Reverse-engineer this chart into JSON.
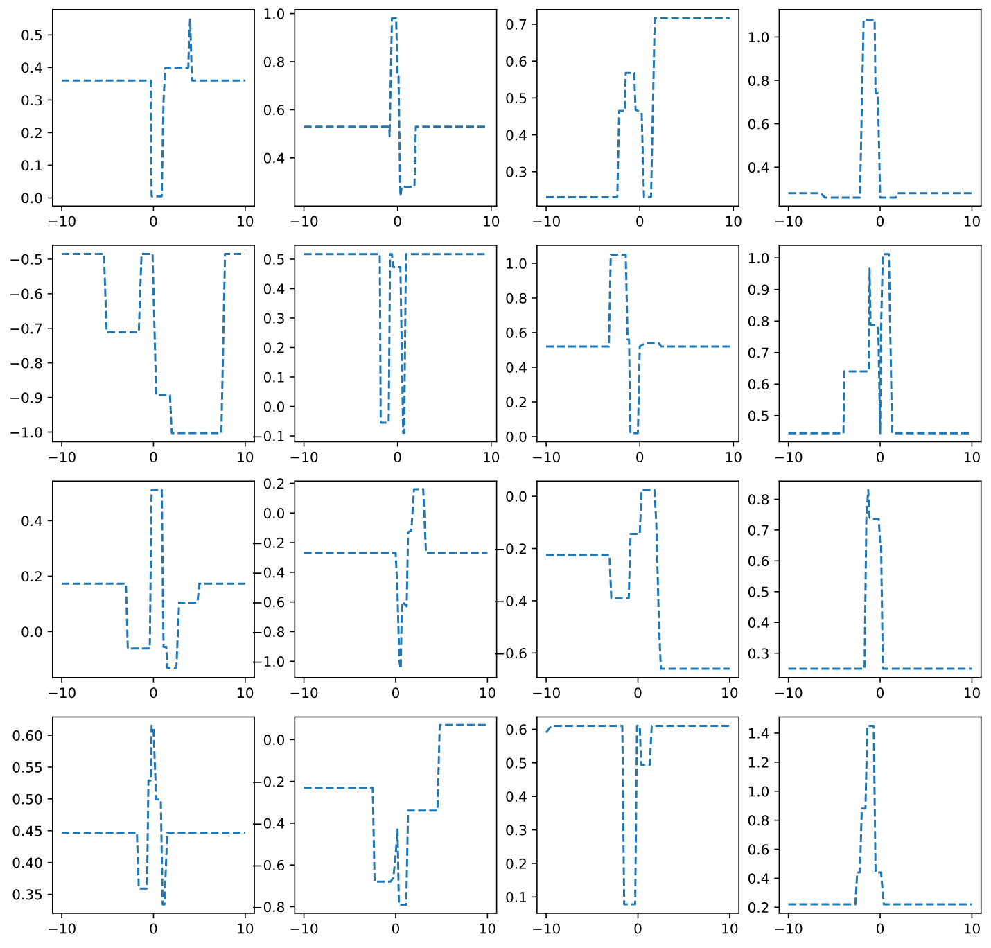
{
  "chart_data": [
    {
      "type": "line",
      "line_style": "dashed",
      "xlim": [
        -11,
        11
      ],
      "xticks": [
        -10,
        0,
        10
      ],
      "ylim": [
        -0.025,
        0.578
      ],
      "yticks": [
        {
          "value": 0,
          "label": "0.0"
        },
        0.1,
        0.2,
        0.3,
        0.4,
        0.5
      ],
      "series": [
        {
          "color": "#1f77b4",
          "x": [
            -10,
            -0.3,
            -0.2,
            0.9,
            1.1,
            1.3,
            3.8,
            3.9,
            4.0,
            4.1,
            4.2,
            10
          ],
          "values": [
            0.36,
            0.36,
            0.005,
            0.005,
            0.3,
            0.4,
            0.4,
            0.5,
            0.55,
            0.45,
            0.36,
            0.36
          ]
        }
      ]
    },
    {
      "type": "line",
      "line_style": "dashed",
      "xlim": [
        -10.98,
        10.58
      ],
      "xticks": [
        -10,
        0,
        10
      ],
      "ylim": [
        0.2,
        1.017
      ],
      "yticks": [
        0.4,
        0.6,
        0.8,
        {
          "value": 1,
          "label": "1.0"
        }
      ],
      "series": [
        {
          "color": "#1f77b4",
          "x": [
            -10,
            -0.9,
            -0.85,
            -0.6,
            -0.15,
            0.0,
            0.1,
            0.3,
            0.45,
            0.6,
            1.8,
            1.95,
            9.6
          ],
          "values": [
            0.53,
            0.53,
            0.49,
            0.98,
            0.98,
            0.74,
            0.74,
            0.24,
            0.28,
            0.28,
            0.28,
            0.53,
            0.53
          ]
        }
      ]
    },
    {
      "type": "line",
      "line_style": "dashed",
      "xlim": [
        -10.98,
        10.58
      ],
      "xticks": [
        -10,
        0,
        10
      ],
      "ylim": [
        0.207,
        0.74
      ],
      "yticks": [
        0.3,
        0.4,
        0.5,
        0.6,
        0.7
      ],
      "series": [
        {
          "color": "#1f77b4",
          "x": [
            -10,
            -2.4,
            -2.2,
            -1.6,
            -1.5,
            -0.6,
            -0.45,
            0.2,
            0.45,
            1.2,
            1.6,
            9.6
          ],
          "values": [
            0.231,
            0.231,
            0.465,
            0.465,
            0.568,
            0.568,
            0.468,
            0.46,
            0.231,
            0.231,
            0.716,
            0.716
          ]
        }
      ]
    },
    {
      "type": "line",
      "line_style": "dashed",
      "xlim": [
        -11,
        11
      ],
      "xticks": [
        -10,
        0,
        10
      ],
      "ylim": [
        0.221,
        1.127
      ],
      "yticks": [
        0.4,
        0.6,
        0.8,
        {
          "value": 1,
          "label": "1.0"
        }
      ],
      "series": [
        {
          "color": "#1f77b4",
          "x": [
            -10,
            -6.5,
            -6.0,
            -2.2,
            -1.8,
            -0.6,
            -0.5,
            -0.25,
            0.0,
            1.7,
            1.9,
            10
          ],
          "values": [
            0.28,
            0.28,
            0.26,
            0.26,
            1.08,
            1.08,
            0.74,
            0.74,
            0.26,
            0.26,
            0.28,
            0.28
          ]
        }
      ]
    },
    {
      "type": "line",
      "line_style": "dashed",
      "xlim": [
        -11,
        11
      ],
      "xticks": [
        -10,
        0,
        10
      ],
      "ylim": [
        -1.028,
        -0.46
      ],
      "yticks": [
        {
          "value": -1,
          "label": "−1.0"
        },
        -0.9,
        -0.8,
        -0.7,
        -0.6,
        -0.5
      ],
      "series": [
        {
          "color": "#1f77b4",
          "x": [
            -10,
            -5.4,
            -5.1,
            -1.6,
            -1.3,
            -0.1,
            0.3,
            1.8,
            2.0,
            7.4,
            7.8,
            10
          ],
          "values": [
            -0.485,
            -0.485,
            -0.711,
            -0.711,
            -0.485,
            -0.485,
            -0.893,
            -0.893,
            -1.003,
            -1.003,
            -0.485,
            -0.485
          ]
        }
      ]
    },
    {
      "type": "line",
      "line_style": "dashed",
      "xlim": [
        -10.98,
        10.58
      ],
      "xticks": [
        -10,
        0,
        10
      ],
      "ylim": [
        -0.12,
        0.547
      ],
      "yticks": [
        -0.1,
        {
          "value": 0,
          "label": "0.0"
        },
        0.1,
        0.2,
        0.3,
        0.4,
        0.5
      ],
      "series": [
        {
          "color": "#1f77b4",
          "x": [
            -10,
            -1.9,
            -1.8,
            -0.95,
            -0.8,
            -0.6,
            -0.45,
            0.3,
            0.6,
            0.7,
            0.9,
            9.6
          ],
          "values": [
            0.517,
            0.517,
            -0.055,
            -0.055,
            0.517,
            0.517,
            0.473,
            0.473,
            -0.09,
            -0.09,
            0.517,
            0.517
          ]
        }
      ]
    },
    {
      "type": "line",
      "line_style": "dashed",
      "xlim": [
        -10.98,
        10.58
      ],
      "xticks": [
        -10,
        0,
        10
      ],
      "ylim": [
        -0.03,
        1.104
      ],
      "yticks": [
        {
          "value": 0,
          "label": "0.0"
        },
        0.2,
        0.4,
        0.6,
        0.8,
        {
          "value": 1,
          "label": "1.0"
        }
      ],
      "series": [
        {
          "color": "#1f77b4",
          "x": [
            -10,
            -3.3,
            -3.1,
            -1.5,
            -1.3,
            -1.15,
            -1.0,
            -0.2,
            0.0,
            0.6,
            2.0,
            2.3,
            9.6
          ],
          "values": [
            0.52,
            0.52,
            1.05,
            1.05,
            0.56,
            0.56,
            0.02,
            0.02,
            0.52,
            0.54,
            0.54,
            0.52,
            0.52
          ]
        }
      ]
    },
    {
      "type": "line",
      "line_style": "dashed",
      "xlim": [
        -11,
        11
      ],
      "xticks": [
        -10,
        0,
        10
      ],
      "ylim": [
        0.417,
        1.04
      ],
      "yticks": [
        0.5,
        0.6,
        0.7,
        0.8,
        0.9,
        {
          "value": 1,
          "label": "1.0"
        }
      ],
      "series": [
        {
          "color": "#1f77b4",
          "x": [
            -10,
            -4.0,
            -3.9,
            -1.25,
            -1.15,
            -1.05,
            -0.4,
            -0.2,
            0.0,
            0.1,
            0.3,
            0.95,
            1.3,
            10
          ],
          "values": [
            0.444,
            0.444,
            0.64,
            0.64,
            0.966,
            0.787,
            0.787,
            0.773,
            0.444,
            0.78,
            1.012,
            1.012,
            0.444,
            0.444
          ]
        }
      ]
    },
    {
      "type": "line",
      "line_style": "dashed",
      "xlim": [
        -11,
        11
      ],
      "xticks": [
        -10,
        0,
        10
      ],
      "ylim": [
        -0.166,
        0.543
      ],
      "yticks": [
        {
          "value": 0,
          "label": "0.0"
        },
        0.2,
        0.4
      ],
      "series": [
        {
          "color": "#1f77b4",
          "x": [
            -10,
            -3.0,
            -2.8,
            -0.4,
            -0.2,
            0.9,
            1.1,
            1.4,
            1.5,
            2.5,
            2.8,
            4.8,
            5.0,
            10
          ],
          "values": [
            0.173,
            0.173,
            -0.061,
            -0.061,
            0.511,
            0.511,
            -0.055,
            -0.055,
            -0.13,
            -0.13,
            0.105,
            0.105,
            0.173,
            0.173
          ]
        }
      ]
    },
    {
      "type": "line",
      "line_style": "dashed",
      "xlim": [
        -11,
        11
      ],
      "xticks": [
        -10,
        0,
        10
      ],
      "ylim": [
        -1.11,
        0.215
      ],
      "yticks": [
        {
          "value": -1,
          "label": "−1.0"
        },
        -0.8,
        -0.6,
        -0.4,
        -0.2,
        {
          "value": 0,
          "label": "0.0"
        },
        0.2
      ],
      "series": [
        {
          "color": "#1f77b4",
          "x": [
            -10,
            0.0,
            0.2,
            0.4,
            0.55,
            0.65,
            0.75,
            1.2,
            1.35,
            1.7,
            2.0,
            3.0,
            3.3,
            10
          ],
          "values": [
            -0.27,
            -0.27,
            -0.55,
            -1.0,
            -1.05,
            -0.7,
            -0.6,
            -0.63,
            -0.13,
            -0.12,
            0.16,
            0.16,
            -0.27,
            -0.27
          ]
        }
      ]
    },
    {
      "type": "line",
      "line_style": "dashed",
      "xlim": [
        -11,
        11
      ],
      "xticks": [
        -10,
        0,
        10
      ],
      "ylim": [
        -0.694,
        0.058
      ],
      "yticks": [
        -0.6,
        -0.4,
        -0.2,
        {
          "value": 0,
          "label": "0.0"
        }
      ],
      "series": [
        {
          "color": "#1f77b4",
          "x": [
            -10,
            -3.1,
            -2.9,
            -1.0,
            -0.8,
            0.2,
            0.4,
            1.8,
            2.0,
            2.3,
            2.5,
            10
          ],
          "values": [
            -0.225,
            -0.225,
            -0.39,
            -0.39,
            -0.144,
            -0.144,
            0.024,
            0.024,
            -0.1,
            -0.5,
            -0.66,
            -0.66
          ]
        }
      ]
    },
    {
      "type": "line",
      "line_style": "dashed",
      "xlim": [
        -11,
        11
      ],
      "xticks": [
        -10,
        0,
        10
      ],
      "ylim": [
        0.221,
        0.859
      ],
      "yticks": [
        0.3,
        0.4,
        0.5,
        0.6,
        0.7,
        0.8
      ],
      "series": [
        {
          "color": "#1f77b4",
          "x": [
            -10,
            -1.7,
            -1.5,
            -1.3,
            -1.15,
            -1.0,
            -0.15,
            0.0,
            0.1,
            0.3,
            10
          ],
          "values": [
            0.25,
            0.25,
            0.742,
            0.83,
            0.74,
            0.736,
            0.736,
            0.656,
            0.656,
            0.25,
            0.25
          ]
        }
      ]
    },
    {
      "type": "line",
      "line_style": "dashed",
      "xlim": [
        -11,
        11
      ],
      "xticks": [
        -10,
        0,
        10
      ],
      "ylim": [
        0.32,
        0.629
      ],
      "yticks": [
        {
          "value": 0.35,
          "label": "0.35"
        },
        {
          "value": 0.4,
          "label": "0.40"
        },
        {
          "value": 0.45,
          "label": "0.45"
        },
        {
          "value": 0.5,
          "label": "0.50"
        },
        {
          "value": 0.55,
          "label": "0.55"
        },
        {
          "value": 0.6,
          "label": "0.60"
        }
      ],
      "series": [
        {
          "color": "#1f77b4",
          "x": [
            -10,
            -1.8,
            -1.6,
            -0.7,
            -0.55,
            -0.3,
            -0.2,
            0.0,
            0.3,
            0.8,
            1.0,
            1.2,
            1.5,
            10
          ],
          "values": [
            0.447,
            0.447,
            0.359,
            0.359,
            0.529,
            0.529,
            0.615,
            0.612,
            0.499,
            0.499,
            0.334,
            0.334,
            0.447,
            0.447
          ]
        }
      ]
    },
    {
      "type": "line",
      "line_style": "dashed",
      "xlim": [
        -11,
        11
      ],
      "xticks": [
        -10,
        0,
        10
      ],
      "ylim": [
        -0.832,
        0.109
      ],
      "yticks": [
        -0.8,
        -0.6,
        -0.4,
        -0.2,
        {
          "value": 0,
          "label": "0.0"
        }
      ],
      "series": [
        {
          "color": "#1f77b4",
          "x": [
            -10,
            -2.5,
            -2.3,
            -0.55,
            -0.25,
            0.0,
            0.2,
            0.35,
            1.15,
            1.35,
            4.55,
            4.8,
            10
          ],
          "values": [
            -0.23,
            -0.23,
            -0.68,
            -0.68,
            -0.66,
            -0.55,
            -0.43,
            -0.79,
            -0.79,
            -0.34,
            -0.34,
            0.07,
            0.07
          ]
        }
      ]
    },
    {
      "type": "line",
      "line_style": "dashed",
      "xlim": [
        -11,
        11
      ],
      "xticks": [
        -10,
        0,
        10
      ],
      "ylim": [
        0.051,
        0.637
      ],
      "yticks": [
        0.1,
        0.2,
        0.3,
        0.4,
        0.5,
        0.6
      ],
      "series": [
        {
          "color": "#1f77b4",
          "x": [
            -10,
            -9.6,
            -9.2,
            -1.7,
            -1.5,
            -0.3,
            -0.1,
            0.2,
            0.35,
            1.3,
            1.5,
            10
          ],
          "values": [
            0.59,
            0.605,
            0.61,
            0.61,
            0.078,
            0.078,
            0.61,
            0.61,
            0.494,
            0.494,
            0.61,
            0.61
          ]
        }
      ]
    },
    {
      "type": "line",
      "line_style": "dashed",
      "xlim": [
        -11,
        11
      ],
      "xticks": [
        -10,
        0,
        10
      ],
      "ylim": [
        0.158,
        1.512
      ],
      "yticks": [
        0.2,
        0.4,
        0.6,
        0.8,
        {
          "value": 1,
          "label": "1.0"
        },
        1.2,
        1.4
      ],
      "series": [
        {
          "color": "#1f77b4",
          "x": [
            -10,
            -2.7,
            -2.5,
            -2.2,
            -2.0,
            -1.6,
            -1.4,
            -0.7,
            -0.5,
            0.1,
            0.4,
            10
          ],
          "values": [
            0.22,
            0.22,
            0.44,
            0.44,
            0.88,
            0.88,
            1.45,
            1.45,
            0.44,
            0.44,
            0.22,
            0.22
          ]
        }
      ]
    }
  ]
}
